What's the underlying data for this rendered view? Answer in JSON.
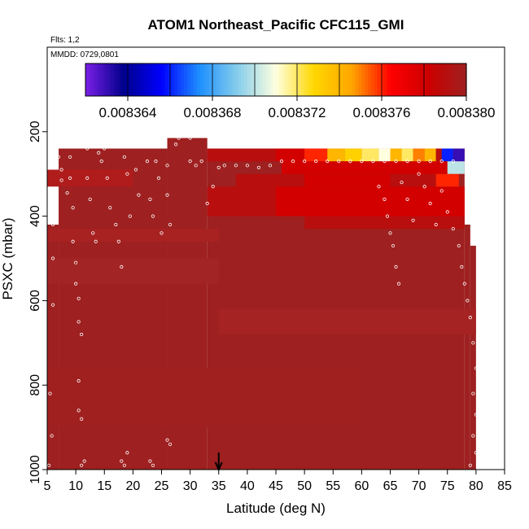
{
  "chart_data": {
    "type": "heatmap",
    "title": "ATOM1 Northeast_Pacific CFC115_GMI",
    "flights_label": "Flts: 1,2",
    "date_label": "MMDD: 0729,0801",
    "xlabel": "Latitude (deg N)",
    "ylabel": "PSXC (mbar)",
    "xlim": [
      5,
      85
    ],
    "ylim": [
      1000,
      0
    ],
    "x_ticks": [
      5,
      10,
      15,
      20,
      25,
      30,
      35,
      40,
      45,
      50,
      55,
      60,
      65,
      70,
      75,
      80,
      85
    ],
    "y_ticks": [
      200,
      400,
      600,
      800,
      1000
    ],
    "colorbar": {
      "min": 0.008362,
      "max": 0.00838,
      "tick_values": [
        0.008364,
        0.008368,
        0.008372,
        0.008376,
        0.00838
      ],
      "tick_labels": [
        "0.008364",
        "0.008368",
        "0.008372",
        "0.008376",
        "0.008380"
      ],
      "colors": [
        "#7a1fe6",
        "#00008b",
        "#0000ff",
        "#1e90ff",
        "#87ceeb",
        "#ffffe0",
        "#ffd700",
        "#ffa500",
        "#ff0000",
        "#cd0000",
        "#9e2020"
      ]
    },
    "marker_latitude": 35,
    "background_value": 0.00838,
    "top_pressure_bounds": [
      {
        "x": [
          5,
          7
        ],
        "p": 420
      },
      {
        "x": [
          7,
          26
        ],
        "p": 240
      },
      {
        "x": [
          26,
          33
        ],
        "p": 215
      },
      {
        "x": [
          33,
          78
        ],
        "p": 240
      },
      {
        "x": [
          78,
          79
        ],
        "p": 420
      },
      {
        "x": [
          79,
          80
        ],
        "p": 470
      }
    ],
    "upper_band_240_270": [
      {
        "x": [
          33,
          45
        ],
        "value": 0.008379
      },
      {
        "x": [
          45,
          50
        ],
        "value": 0.008378
      },
      {
        "x": [
          50,
          54
        ],
        "value": 0.008376
      },
      {
        "x": [
          54,
          57
        ],
        "value": 0.008374
      },
      {
        "x": [
          57,
          60
        ],
        "value": 0.008373
      },
      {
        "x": [
          60,
          63
        ],
        "value": 0.008372
      },
      {
        "x": [
          63,
          65
        ],
        "value": 0.008371
      },
      {
        "x": [
          65,
          67
        ],
        "value": 0.008374
      },
      {
        "x": [
          67,
          69
        ],
        "value": 0.008372
      },
      {
        "x": [
          69,
          71
        ],
        "value": 0.008375
      },
      {
        "x": [
          71,
          73
        ],
        "value": 0.008374
      },
      {
        "x": [
          73,
          74
        ],
        "value": 0.008379
      },
      {
        "x": [
          74,
          76
        ],
        "value": 0.008366
      },
      {
        "x": [
          76,
          78
        ],
        "value": 0.008363
      }
    ],
    "band_270_300": [
      {
        "x": [
          35,
          46
        ],
        "value": 0.00838
      },
      {
        "x": [
          46,
          65
        ],
        "value": 0.008378
      },
      {
        "x": [
          65,
          75
        ],
        "value": 0.008378
      },
      {
        "x": [
          75,
          78
        ],
        "value": 0.00837
      }
    ],
    "band_300_330": [
      {
        "x": [
          38,
          50
        ],
        "value": 0.008379
      },
      {
        "x": [
          50,
          65
        ],
        "value": 0.008378
      },
      {
        "x": [
          65,
          73
        ],
        "value": 0.008379
      },
      {
        "x": [
          73,
          77
        ],
        "value": 0.008376
      }
    ],
    "band_330_400": [
      {
        "x": [
          33,
          45
        ],
        "value": 0.008379
      },
      {
        "x": [
          45,
          70
        ],
        "value": 0.008378
      },
      {
        "x": [
          70,
          78
        ],
        "value": 0.008378
      }
    ],
    "band_400_430": [
      {
        "x": [
          50,
          78
        ],
        "value": 0.008379
      }
    ],
    "observations": [
      [
        5.3,
        990
      ],
      [
        6,
        420
      ],
      [
        6,
        500
      ],
      [
        6,
        610
      ],
      [
        5.5,
        820
      ],
      [
        5.8,
        920
      ],
      [
        7,
        260
      ],
      [
        7.5,
        290
      ],
      [
        7.5,
        315
      ],
      [
        8,
        230
      ],
      [
        8.5,
        345
      ],
      [
        9,
        260
      ],
      [
        9,
        310
      ],
      [
        9.5,
        380
      ],
      [
        9.5,
        460
      ],
      [
        10,
        510
      ],
      [
        10,
        560
      ],
      [
        10.5,
        595
      ],
      [
        10.5,
        650
      ],
      [
        11,
        680
      ],
      [
        10.5,
        790
      ],
      [
        10.5,
        860
      ],
      [
        11,
        880
      ],
      [
        11,
        990
      ],
      [
        11.5,
        980
      ],
      [
        12,
        240
      ],
      [
        12,
        310
      ],
      [
        12.5,
        360
      ],
      [
        13,
        440
      ],
      [
        13.5,
        460
      ],
      [
        14,
        250
      ],
      [
        14.5,
        270
      ],
      [
        15,
        240
      ],
      [
        15.5,
        310
      ],
      [
        16,
        380
      ],
      [
        17,
        420
      ],
      [
        17.5,
        460
      ],
      [
        18,
        520
      ],
      [
        18.5,
        260
      ],
      [
        19,
        300
      ],
      [
        19.5,
        400
      ],
      [
        18,
        980
      ],
      [
        18.5,
        990
      ],
      [
        19,
        960
      ],
      [
        20,
        230
      ],
      [
        20.5,
        290
      ],
      [
        21,
        350
      ],
      [
        22,
        230
      ],
      [
        22.5,
        270
      ],
      [
        23,
        360
      ],
      [
        23.5,
        400
      ],
      [
        24,
        270
      ],
      [
        24.5,
        310
      ],
      [
        23,
        980
      ],
      [
        23.5,
        990
      ],
      [
        25,
        440
      ],
      [
        26,
        280
      ],
      [
        26,
        350
      ],
      [
        26.5,
        420
      ],
      [
        27,
        210
      ],
      [
        27.5,
        230
      ],
      [
        28,
        215
      ],
      [
        29,
        210
      ],
      [
        30,
        215
      ],
      [
        30,
        270
      ],
      [
        31,
        280
      ],
      [
        32,
        270
      ],
      [
        26,
        930
      ],
      [
        26.5,
        940
      ],
      [
        33,
        370
      ],
      [
        34,
        330
      ],
      [
        35,
        285
      ],
      [
        36,
        280
      ],
      [
        38,
        280
      ],
      [
        40,
        280
      ],
      [
        42,
        285
      ],
      [
        44,
        280
      ],
      [
        46,
        270
      ],
      [
        48,
        270
      ],
      [
        50,
        270
      ],
      [
        52,
        270
      ],
      [
        54,
        270
      ],
      [
        56,
        270
      ],
      [
        58,
        270
      ],
      [
        60,
        270
      ],
      [
        62,
        270
      ],
      [
        64,
        270
      ],
      [
        66,
        270
      ],
      [
        68,
        270
      ],
      [
        70,
        270
      ],
      [
        72,
        270
      ],
      [
        74,
        270
      ],
      [
        76,
        270
      ],
      [
        63,
        330
      ],
      [
        64,
        360
      ],
      [
        64.5,
        400
      ],
      [
        65,
        440
      ],
      [
        65.5,
        470
      ],
      [
        66,
        520
      ],
      [
        66.5,
        560
      ],
      [
        67,
        320
      ],
      [
        68,
        360
      ],
      [
        69,
        410
      ],
      [
        70,
        300
      ],
      [
        71,
        330
      ],
      [
        72,
        370
      ],
      [
        73,
        420
      ],
      [
        74,
        340
      ],
      [
        75,
        390
      ],
      [
        76,
        430
      ],
      [
        77,
        470
      ],
      [
        77.5,
        520
      ],
      [
        78,
        560
      ],
      [
        78.5,
        600
      ],
      [
        79,
        640
      ],
      [
        79.5,
        700
      ],
      [
        80,
        760
      ],
      [
        79.5,
        820
      ],
      [
        80,
        870
      ],
      [
        79.5,
        920
      ],
      [
        80,
        960
      ],
      [
        79,
        990
      ]
    ]
  }
}
